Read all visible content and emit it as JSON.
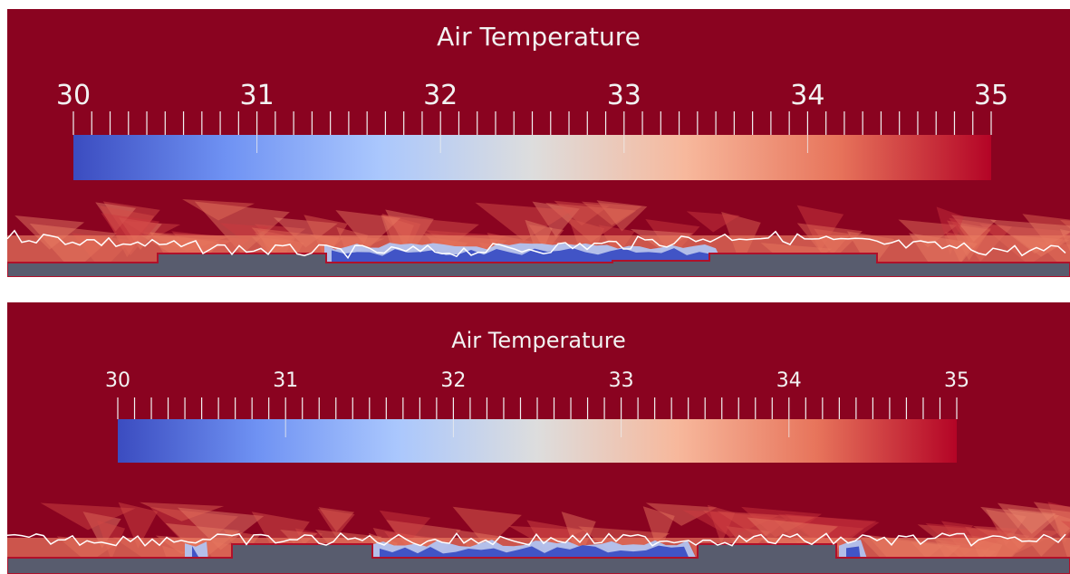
{
  "panels": [
    {
      "id": "top",
      "title": "Air Temperature",
      "tick_labels": [
        "30",
        "31",
        "32",
        "33",
        "34",
        "35"
      ],
      "range": [
        30,
        35
      ]
    },
    {
      "id": "bottom",
      "title": "Air Temperature",
      "tick_labels": [
        "30",
        "31",
        "32",
        "33",
        "34",
        "35"
      ],
      "range": [
        30,
        35
      ]
    }
  ],
  "colormap": {
    "name": "Cool to Warm",
    "stops": [
      "#3b4cc0",
      "#6f92f3",
      "#aac7fd",
      "#dddddd",
      "#f7b89c",
      "#e7745b",
      "#b40426"
    ]
  },
  "colors": {
    "background": "#8a0320",
    "ground": "#585c6e",
    "outline": "#b0102a",
    "isoline": "#ffffff"
  }
}
